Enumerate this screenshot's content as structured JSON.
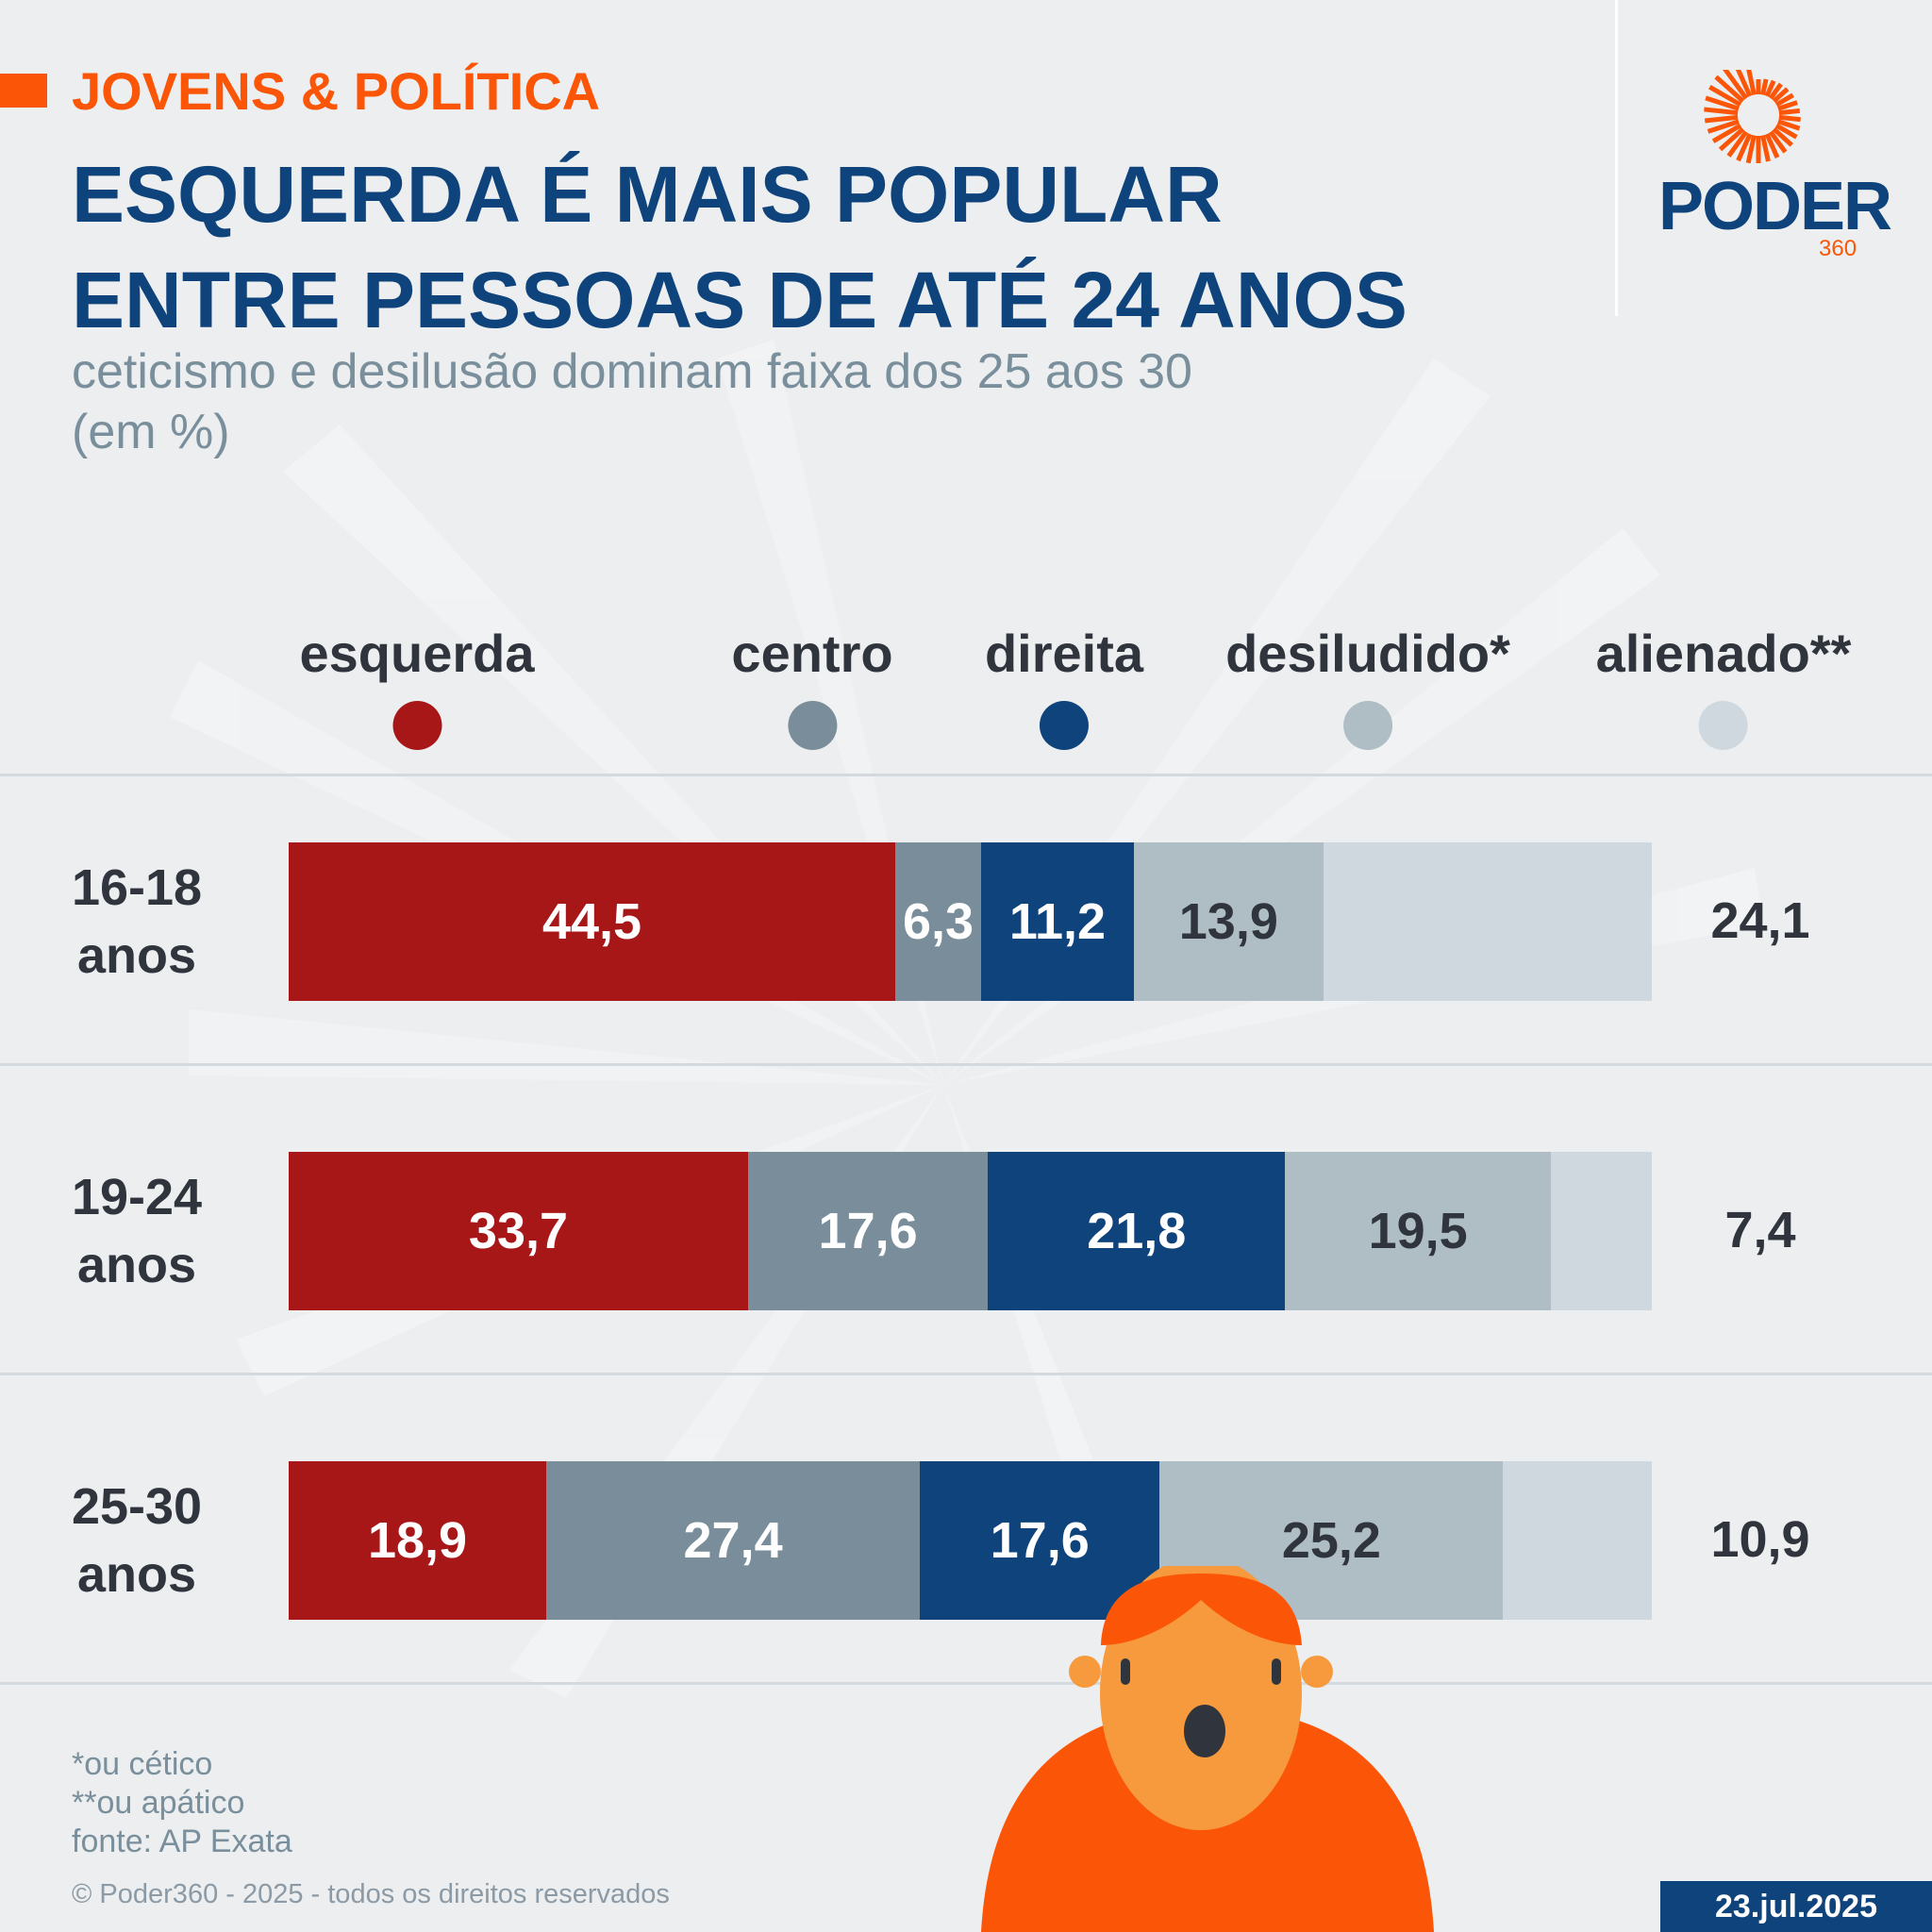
{
  "header": {
    "kicker": "JOVENS & POLÍTICA",
    "title_line1": "ESQUERDA É MAIS POPULAR",
    "title_line2": "ENTRE PESSOAS DE ATÉ 24 ANOS",
    "subtitle_line1": "ceticismo e desilusão dominam faixa dos 25 aos 30",
    "subtitle_line2": "(em %)"
  },
  "logo": {
    "word": "PODER",
    "number": "360"
  },
  "colors": {
    "accent": "#fb5607",
    "brand_blue": "#0f437c",
    "esquerda": "#a81718",
    "centro": "#798e9a",
    "direita": "#0f437c",
    "desiludido": "#afbdc4",
    "alienado": "#ced8de"
  },
  "chart_data": {
    "type": "bar",
    "orientation": "horizontal-stacked",
    "title": "ESQUERDA É MAIS POPULAR ENTRE PESSOAS DE ATÉ 24 ANOS",
    "subtitle": "ceticismo e desilusão dominam faixa dos 25 aos 30 (em %)",
    "unit": "%",
    "legend_position": "top",
    "categories": [
      "16-18 anos",
      "19-24 anos",
      "25-30 anos"
    ],
    "category_lines": [
      [
        "16-18",
        "anos"
      ],
      [
        "19-24",
        "anos"
      ],
      [
        "25-30",
        "anos"
      ]
    ],
    "series": [
      {
        "name": "esquerda",
        "values": [
          44.5,
          33.7,
          18.9
        ],
        "labels": [
          "44,5",
          "33,7",
          "18,9"
        ]
      },
      {
        "name": "centro",
        "values": [
          6.3,
          17.6,
          27.4
        ],
        "labels": [
          "6,3",
          "17,6",
          "27,4"
        ]
      },
      {
        "name": "direita",
        "values": [
          11.2,
          21.8,
          17.6
        ],
        "labels": [
          "11,2",
          "21,8",
          "17,6"
        ]
      },
      {
        "name": "desiludido*",
        "values": [
          13.9,
          19.5,
          25.2
        ],
        "labels": [
          "13,9",
          "19,5",
          "25,2"
        ]
      },
      {
        "name": "alienado**",
        "values": [
          24.1,
          7.4,
          10.9
        ],
        "labels": [
          "24,1",
          "7,4",
          "10,9"
        ]
      }
    ],
    "xlim": [
      0,
      100
    ]
  },
  "footer": {
    "note1": "*ou cético",
    "note2": "**ou apático",
    "source": "fonte: AP Exata",
    "copyright": "© Poder360 - 2025 - todos os direitos reservados",
    "date": "23.jul.2025"
  }
}
